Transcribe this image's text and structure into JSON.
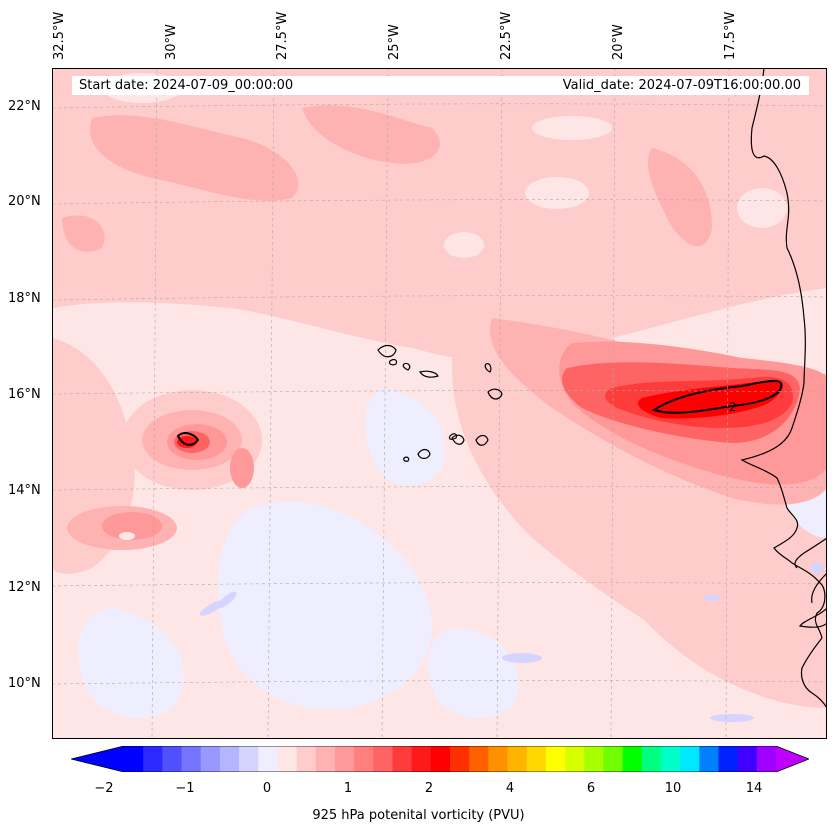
{
  "map": {
    "start_label": "Start date: 2024-07-09_00:00:00",
    "valid_label": "Valid_date: 2024-07-09T16:00:00.00",
    "contour_label": "2",
    "lon_labels": [
      "32.5°W",
      "30°W",
      "27.5°W",
      "25°W",
      "22.5°W",
      "20°W",
      "17.5°W"
    ],
    "lat_labels": [
      "22°N",
      "20°N",
      "18°N",
      "16°N",
      "14°N",
      "12°N",
      "10°N"
    ]
  },
  "colorbar": {
    "title": "925 hPa potenital vorticity (PVU)",
    "tick_labels": [
      "−2",
      "−1",
      "0",
      "1",
      "2",
      "4",
      "6",
      "10",
      "14"
    ],
    "colors": [
      "#0000ff",
      "#2a2aff",
      "#5050ff",
      "#7474ff",
      "#9898ff",
      "#b4b4ff",
      "#d4d4ff",
      "#eeeeff",
      "#ffe6e6",
      "#ffcccc",
      "#ffb2b2",
      "#ff9898",
      "#ff7e7e",
      "#ff6464",
      "#ff3c3c",
      "#ff1a1a",
      "#ff0000",
      "#ff3000",
      "#ff6000",
      "#ff9000",
      "#ffb400",
      "#ffd800",
      "#ffff00",
      "#d8ff00",
      "#a8ff00",
      "#70ff00",
      "#00ff00",
      "#00ff80",
      "#00ffc8",
      "#00e8ff",
      "#0080ff",
      "#0020ff",
      "#4000ff",
      "#a000ff"
    ],
    "left_end_color": "#0000ff",
    "right_end_color": "#c000ff"
  }
}
